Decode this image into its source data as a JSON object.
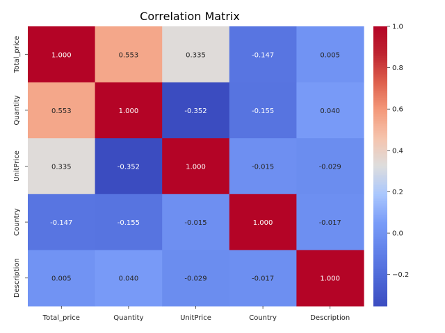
{
  "chart_data": {
    "type": "heatmap",
    "title": "Correlation Matrix",
    "xlabel": "",
    "ylabel": "",
    "x_labels": [
      "Total_price",
      "Quantity",
      "UnitPrice",
      "Country",
      "Description"
    ],
    "y_labels": [
      "Total_price",
      "Quantity",
      "UnitPrice",
      "Country",
      "Description"
    ],
    "values": [
      [
        1.0,
        0.553,
        0.335,
        -0.147,
        0.005
      ],
      [
        0.553,
        1.0,
        -0.352,
        -0.155,
        0.04
      ],
      [
        0.335,
        -0.352,
        1.0,
        -0.015,
        -0.029
      ],
      [
        -0.147,
        -0.155,
        -0.015,
        1.0,
        -0.017
      ],
      [
        0.005,
        0.04,
        -0.029,
        -0.017,
        1.0
      ]
    ],
    "value_labels": [
      [
        "1.000",
        "0.553",
        "0.335",
        "-0.147",
        "0.005"
      ],
      [
        "0.553",
        "1.000",
        "-0.352",
        "-0.155",
        "0.040"
      ],
      [
        "0.335",
        "-0.352",
        "1.000",
        "-0.015",
        "-0.029"
      ],
      [
        "-0.147",
        "-0.155",
        "-0.015",
        "1.000",
        "-0.017"
      ],
      [
        "0.005",
        "0.040",
        "-0.029",
        "-0.017",
        "1.000"
      ]
    ],
    "colormap": "coolwarm",
    "colorbar": {
      "range": [
        -0.352,
        1.0
      ],
      "ticks": [
        -0.2,
        0.0,
        0.2,
        0.4,
        0.6,
        0.8,
        1.0
      ],
      "tick_labels": [
        "−0.2",
        "0.0",
        "0.2",
        "0.4",
        "0.6",
        "0.8",
        "1.0"
      ]
    },
    "colors": {
      "low": "#3b4cc0",
      "mid": "#dddddd",
      "high": "#b40426"
    }
  }
}
